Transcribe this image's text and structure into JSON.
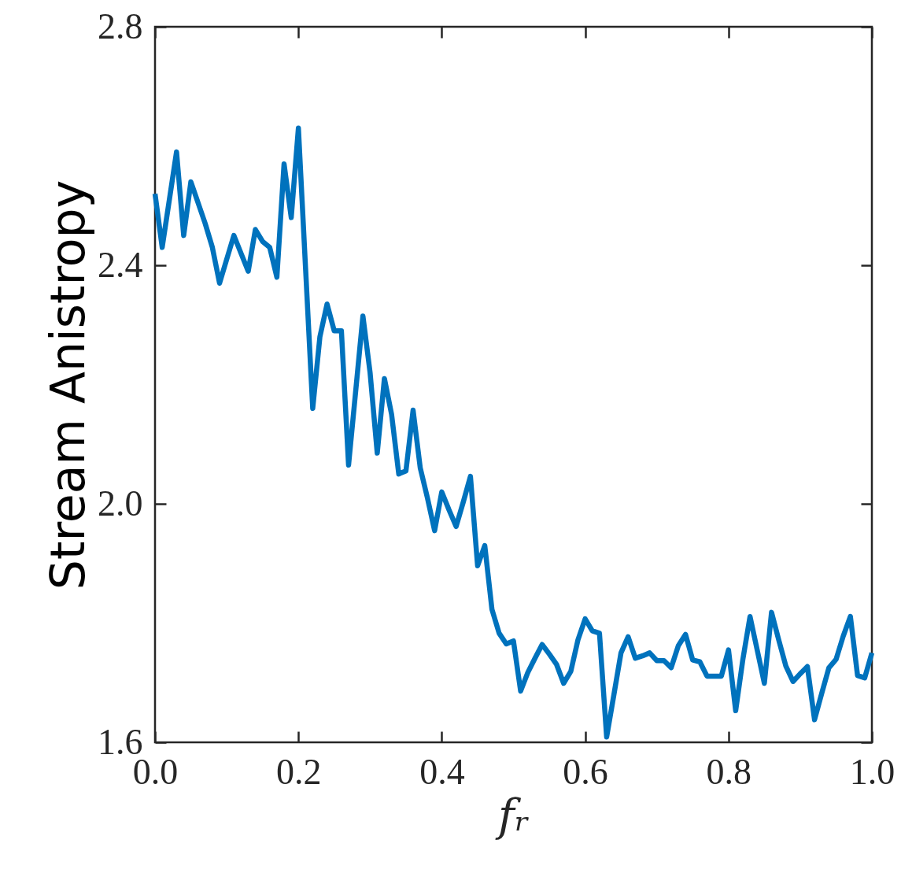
{
  "chart_data": {
    "type": "line",
    "xlabel": "fᵣ",
    "ylabel": "Stream Anistropy",
    "x": [
      0,
      0.01,
      0.02,
      0.03,
      0.04,
      0.05,
      0.06,
      0.07,
      0.08,
      0.09,
      0.1,
      0.11,
      0.12,
      0.13,
      0.14,
      0.15,
      0.16,
      0.17,
      0.18,
      0.19,
      0.2,
      0.21,
      0.22,
      0.23,
      0.24,
      0.25,
      0.26,
      0.27,
      0.28,
      0.29,
      0.3,
      0.31,
      0.32,
      0.33,
      0.34,
      0.35,
      0.36,
      0.37,
      0.38,
      0.39,
      0.4,
      0.41,
      0.42,
      0.43,
      0.44,
      0.45,
      0.46,
      0.47,
      0.48,
      0.49,
      0.5,
      0.51,
      0.52,
      0.53,
      0.54,
      0.55,
      0.56,
      0.57,
      0.58,
      0.59,
      0.6,
      0.61,
      0.62,
      0.63,
      0.64,
      0.65,
      0.66,
      0.67,
      0.68,
      0.69,
      0.7,
      0.71,
      0.72,
      0.73,
      0.74,
      0.75,
      0.76,
      0.77,
      0.78,
      0.79,
      0.8,
      0.81,
      0.82,
      0.83,
      0.84,
      0.85,
      0.86,
      0.87,
      0.88,
      0.89,
      0.9,
      0.91,
      0.92,
      0.93,
      0.94,
      0.95,
      0.96,
      0.97,
      0.98,
      0.99,
      1
    ],
    "series": [
      {
        "color": "#0072bd",
        "values": [
          2.52,
          2.43,
          2.51,
          2.59,
          2.45,
          2.54,
          2.505,
          2.47,
          2.43,
          2.37,
          2.41,
          2.45,
          2.42,
          2.39,
          2.46,
          2.44,
          2.43,
          2.38,
          2.57,
          2.48,
          2.63,
          2.395,
          2.16,
          2.28,
          2.335,
          2.29,
          2.29,
          2.065,
          2.19,
          2.315,
          2.22,
          2.085,
          2.21,
          2.15,
          2.05,
          2.055,
          2.157,
          2.06,
          2.01,
          1.955,
          2.02,
          1.99,
          1.962,
          2.003,
          2.046,
          1.896,
          1.93,
          1.823,
          1.783,
          1.765,
          1.77,
          1.686,
          1.717,
          1.741,
          1.764,
          1.748,
          1.731,
          1.699,
          1.719,
          1.772,
          1.807,
          1.787,
          1.783,
          1.609,
          1.679,
          1.75,
          1.777,
          1.741,
          1.745,
          1.75,
          1.737,
          1.737,
          1.725,
          1.762,
          1.781,
          1.738,
          1.735,
          1.711,
          1.711,
          1.711,
          1.755,
          1.653,
          1.739,
          1.811,
          1.755,
          1.699,
          1.818,
          1.772,
          1.728,
          1.702,
          1.715,
          1.727,
          1.638,
          1.682,
          1.725,
          1.739,
          1.778,
          1.811,
          1.712,
          1.708,
          1.75
        ]
      }
    ],
    "xlim": [
      0,
      1
    ],
    "ylim": [
      1.6,
      2.8
    ],
    "xticks": [
      {
        "value": 0,
        "label": "0.0"
      },
      0.2,
      0.4,
      0.6,
      0.8,
      {
        "value": 1,
        "label": "1.0"
      }
    ],
    "yticks": [
      1.6,
      {
        "value": 2,
        "label": "2.0"
      },
      2.4,
      2.8
    ],
    "grid": false,
    "legend": false,
    "marker": "none",
    "line_style": "solid"
  }
}
